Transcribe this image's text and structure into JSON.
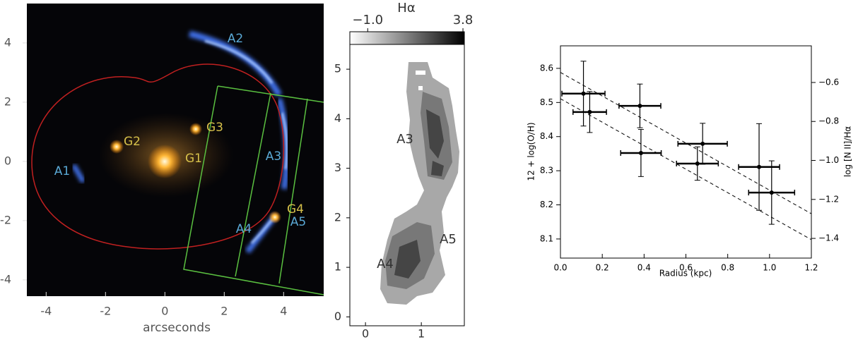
{
  "chart_data": [
    {
      "type": "image",
      "xlabel": "arcseconds",
      "xlim": [
        -4.65,
        5.35
      ],
      "ylim": [
        -4.55,
        5.33
      ],
      "xticks": [
        -4,
        -2,
        0,
        2,
        4
      ],
      "yticks": [
        -4,
        -2,
        0,
        2,
        4
      ],
      "annotations": [
        "A1",
        "A2",
        "A3",
        "A4",
        "A5",
        "G1",
        "G2",
        "G3",
        "G4"
      ]
    },
    {
      "type": "map",
      "colorbar_label": "Hα",
      "clim": [
        -1.9,
        3.87
      ],
      "cticks": [
        {
          "value": -1.0,
          "label": "−1.0"
        },
        3.8
      ],
      "xlim": [
        -0.28,
        1.77
      ],
      "ylim": [
        -0.18,
        5.5
      ],
      "xticks": [
        0,
        1
      ],
      "yticks": [
        0,
        1,
        2,
        3,
        4,
        5
      ],
      "annotations": [
        "A3",
        "A4",
        "A5"
      ]
    },
    {
      "type": "errorbar",
      "xlabel": "Radius (kpc)",
      "ylabel": "12 + log(O/H)",
      "y2label": "log [N II]/Hα",
      "xlim": [
        0,
        1.2
      ],
      "ylim": [
        8.044,
        8.666
      ],
      "y2lim": [
        -1.501,
        -0.412
      ],
      "xticks": [
        {
          "value": 0,
          "label": "0.0"
        },
        0.2,
        0.4,
        0.6,
        0.8,
        {
          "value": 1,
          "label": "1.0"
        },
        1.2
      ],
      "yticks": [
        8.1,
        8.2,
        8.3,
        8.4,
        8.5,
        8.6
      ],
      "y2ticks": [
        {
          "value": -0.6,
          "label": "−0.6"
        },
        {
          "value": -0.8,
          "label": "−0.8"
        },
        {
          "value": -1.0,
          "label": "−1.0"
        },
        {
          "value": -1.2,
          "label": "−1.2"
        },
        {
          "value": -1.4,
          "label": "−1.4"
        }
      ],
      "series": [
        {
          "color": "#000000",
          "x": [
            0.11,
            0.14,
            0.38,
            0.385,
            0.68,
            0.655,
            0.95,
            1.01
          ],
          "values": [
            8.526,
            8.472,
            8.49,
            8.352,
            8.379,
            8.321,
            8.311,
            8.236
          ],
          "xerr": [
            0.103,
            0.08,
            0.1,
            0.097,
            0.118,
            0.1,
            0.098,
            0.11
          ],
          "yerr": [
            0.095,
            0.06,
            0.064,
            0.069,
            0.06,
            0.049,
            0.127,
            0.093
          ]
        }
      ],
      "lines": [
        {
          "x": [
            0,
            1.2
          ],
          "values": [
            8.588,
            8.174
          ]
        },
        {
          "x": [
            0,
            1.2
          ],
          "values": [
            8.511,
            8.098
          ]
        }
      ]
    }
  ]
}
